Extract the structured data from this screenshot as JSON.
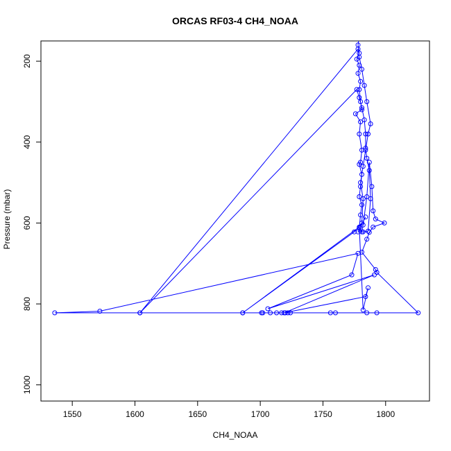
{
  "chart_data": {
    "type": "line",
    "title": "ORCAS RF03-4 CH4_NOAA",
    "xlabel": "CH4_NOAA",
    "ylabel": "Pressure (mbar)",
    "xlim": [
      1525,
      1835
    ],
    "ylim": [
      1040,
      150
    ],
    "y_reversed": true,
    "x_ticks": [
      1550,
      1600,
      1650,
      1700,
      1750,
      1800
    ],
    "y_ticks": [
      200,
      400,
      600,
      800,
      1000
    ],
    "grid": false,
    "legend": "none",
    "series": [
      {
        "color": "#0000ff",
        "markers": "open-circle",
        "points": [
          [
            1779,
            140
          ],
          [
            1778,
            160
          ],
          [
            1779,
            180
          ],
          [
            1777,
            195
          ],
          [
            1779,
            210
          ],
          [
            1778,
            230
          ],
          [
            1780,
            250
          ],
          [
            1779,
            270
          ],
          [
            1780,
            300
          ],
          [
            1781,
            320
          ],
          [
            1776,
            330
          ],
          [
            1780,
            350
          ],
          [
            1779,
            380
          ],
          [
            1781,
            420
          ],
          [
            1780,
            450
          ],
          [
            1779,
            455
          ],
          [
            1781,
            480
          ],
          [
            1780,
            510
          ],
          [
            1779,
            535
          ],
          [
            1781,
            555
          ],
          [
            1780,
            580
          ],
          [
            1779,
            612
          ],
          [
            1781,
            622
          ],
          [
            1782,
            605
          ],
          [
            1785,
            535
          ],
          [
            1787,
            450
          ],
          [
            1789,
            510
          ],
          [
            1790,
            570
          ],
          [
            1792,
            590
          ],
          [
            1799,
            600
          ],
          [
            1790,
            610
          ],
          [
            1787,
            623
          ],
          [
            1785,
            640
          ],
          [
            1781,
            672
          ],
          [
            1792,
            715
          ],
          [
            1793,
            722
          ],
          [
            1826,
            822
          ],
          [
            1793,
            822
          ],
          [
            1785,
            822
          ],
          [
            1760,
            822
          ],
          [
            1756,
            822
          ],
          [
            1724,
            822
          ],
          [
            1722,
            822
          ],
          [
            1720,
            822
          ],
          [
            1717,
            822
          ],
          [
            1713,
            822
          ],
          [
            1708,
            822
          ],
          [
            1702,
            822
          ],
          [
            1701,
            822
          ],
          [
            1686,
            822
          ],
          [
            1604,
            822
          ],
          [
            1536,
            822
          ],
          [
            1572,
            818
          ],
          [
            1778,
            675
          ],
          [
            1773,
            728
          ],
          [
            1706,
            812
          ],
          [
            1791,
            728
          ],
          [
            1719,
            822
          ],
          [
            1784,
            782
          ],
          [
            1786,
            760
          ],
          [
            1782,
            815
          ],
          [
            1779,
            610
          ],
          [
            1686,
            822
          ],
          [
            1775,
            622
          ],
          [
            1781,
            600
          ],
          [
            1782,
            540
          ],
          [
            1780,
            500
          ],
          [
            1782,
            460
          ],
          [
            1784,
            420
          ],
          [
            1786,
            380
          ],
          [
            1788,
            355
          ],
          [
            1785,
            300
          ],
          [
            1783,
            260
          ],
          [
            1781,
            220
          ],
          [
            1779,
            190
          ],
          [
            1778,
            170
          ],
          [
            1604,
            822
          ],
          [
            1777,
            270
          ],
          [
            1779,
            290
          ],
          [
            1781,
            315
          ],
          [
            1783,
            345
          ],
          [
            1784,
            380
          ],
          [
            1784,
            415
          ],
          [
            1785,
            440
          ],
          [
            1787,
            470
          ],
          [
            1788,
            540
          ],
          [
            1786,
            620
          ],
          [
            1782,
            622
          ],
          [
            1778,
            622
          ],
          [
            1784,
            585
          ]
        ]
      }
    ]
  }
}
